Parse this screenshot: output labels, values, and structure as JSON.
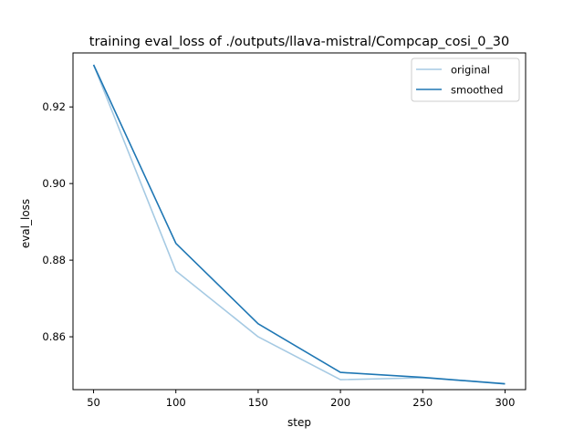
{
  "chart_data": {
    "type": "line",
    "title": "training eval_loss of ./outputs/llava-mistral/Compcap_cosi_0_30",
    "xlabel": "step",
    "ylabel": "eval_loss",
    "x": [
      50,
      100,
      150,
      200,
      250,
      300
    ],
    "xlim": [
      37.5,
      312.5
    ],
    "ylim": [
      0.8462,
      0.9341
    ],
    "xticks": [
      50,
      100,
      150,
      200,
      250,
      300
    ],
    "yticks": [
      0.86,
      0.88,
      0.9,
      0.92
    ],
    "ytick_labels": [
      "0.86",
      "0.88",
      "0.90",
      "0.92"
    ],
    "grid": false,
    "legend_position": "top-right",
    "series": [
      {
        "name": "original",
        "color": "#a6cae3",
        "values": [
          0.931,
          0.8772,
          0.86,
          0.8488,
          0.8493,
          0.8478
        ]
      },
      {
        "name": "smoothed",
        "color": "#1f77b4",
        "values": [
          0.931,
          0.8844,
          0.8634,
          0.8507,
          0.8494,
          0.8477
        ]
      }
    ]
  }
}
